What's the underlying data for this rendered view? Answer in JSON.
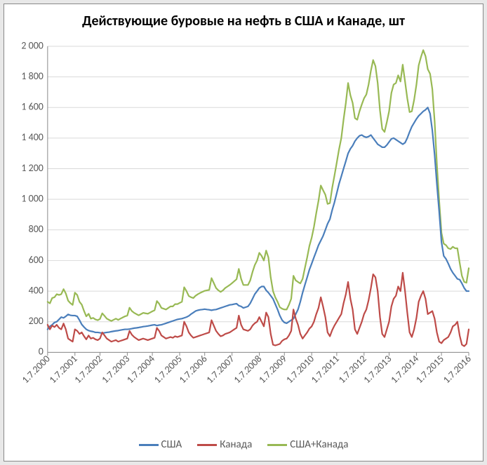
{
  "chart": {
    "type": "line",
    "title": "Действующие буровые на нефть в США и Канаде, шт",
    "title_fontsize": 20,
    "title_fontweight": "bold",
    "background_color": "#ffffff",
    "frame_color": "#888888",
    "grid_color": "#d9d9d9",
    "axis_color": "#8a8a8a",
    "tick_label_color": "#595959",
    "tick_label_fontsize": 14,
    "y": {
      "min": 0,
      "max": 2000,
      "step": 200,
      "labels": [
        "0",
        "200",
        "400",
        "600",
        "800",
        "1 000",
        "1 200",
        "1 400",
        "1 600",
        "1 800",
        "2 000"
      ]
    },
    "x": {
      "categories": [
        "1.7.2000",
        "1.7.2001",
        "1.7.2002",
        "1.7.2003",
        "1.7.2004",
        "1.7.2005",
        "1.7.2006",
        "1.7.2007",
        "1.7.2008",
        "1.7.2009",
        "1.7.2010",
        "1.7.2011",
        "1.7.2012",
        "1.7.2013",
        "1.7.2014",
        "1.7.2015",
        "1.7.2016"
      ],
      "label_rotation": -45
    },
    "series": [
      {
        "id": "usa",
        "name": "США",
        "color": "#4a7ebb",
        "line_width": 2.2,
        "data": [
          150,
          170,
          180,
          195,
          200,
          215,
          230,
          225,
          235,
          248,
          242,
          240,
          240,
          235,
          210,
          182,
          165,
          150,
          142,
          138,
          135,
          130,
          130,
          128,
          125,
          128,
          130,
          132,
          135,
          138,
          140,
          142,
          145,
          148,
          150,
          150,
          152,
          155,
          158,
          160,
          162,
          165,
          168,
          170,
          172,
          175,
          178,
          180,
          175,
          178,
          180,
          185,
          190,
          195,
          200,
          205,
          210,
          215,
          218,
          220,
          225,
          230,
          238,
          250,
          260,
          270,
          275,
          278,
          280,
          282,
          280,
          278,
          275,
          278,
          280,
          285,
          290,
          295,
          300,
          305,
          310,
          312,
          315,
          318,
          305,
          300,
          290,
          295,
          300,
          320,
          350,
          380,
          400,
          420,
          430,
          430,
          405,
          390,
          370,
          350,
          315,
          280,
          240,
          210,
          195,
          190,
          200,
          210,
          220,
          250,
          280,
          330,
          390,
          440,
          490,
          540,
          580,
          620,
          660,
          700,
          730,
          760,
          800,
          840,
          870,
          930,
          980,
          1040,
          1100,
          1150,
          1200,
          1250,
          1300,
          1330,
          1350,
          1380,
          1400,
          1415,
          1420,
          1410,
          1405,
          1410,
          1420,
          1400,
          1380,
          1360,
          1350,
          1340,
          1340,
          1355,
          1375,
          1395,
          1400,
          1390,
          1380,
          1370,
          1360,
          1370,
          1400,
          1440,
          1475,
          1500,
          1525,
          1545,
          1560,
          1575,
          1585,
          1600,
          1560,
          1450,
          1290,
          1100,
          920,
          720,
          630,
          610,
          580,
          545,
          520,
          500,
          480,
          475,
          450,
          420,
          400,
          400
        ]
      },
      {
        "id": "canada",
        "name": "Канада",
        "color": "#be4b48",
        "line_width": 2.2,
        "data": [
          180,
          150,
          175,
          165,
          180,
          160,
          150,
          188,
          150,
          90,
          80,
          70,
          150,
          140,
          120,
          130,
          105,
          85,
          110,
          90,
          95,
          85,
          80,
          90,
          130,
          110,
          90,
          80,
          70,
          75,
          80,
          70,
          75,
          80,
          85,
          90,
          140,
          115,
          100,
          90,
          80,
          85,
          90,
          85,
          80,
          85,
          90,
          95,
          160,
          140,
          110,
          100,
          90,
          95,
          100,
          95,
          105,
          100,
          105,
          110,
          200,
          170,
          130,
          110,
          95,
          100,
          105,
          110,
          115,
          120,
          125,
          130,
          210,
          175,
          140,
          120,
          105,
          110,
          120,
          125,
          130,
          140,
          150,
          160,
          240,
          180,
          150,
          145,
          140,
          150,
          175,
          190,
          200,
          230,
          200,
          170,
          260,
          230,
          120,
          50,
          45,
          50,
          55,
          75,
          85,
          90,
          110,
          140,
          280,
          220,
          180,
          120,
          90,
          110,
          130,
          155,
          170,
          200,
          250,
          290,
          360,
          300,
          230,
          130,
          105,
          145,
          175,
          200,
          225,
          250,
          320,
          380,
          460,
          350,
          280,
          150,
          120,
          160,
          200,
          250,
          280,
          340,
          420,
          510,
          490,
          400,
          230,
          120,
          100,
          150,
          200,
          300,
          350,
          370,
          430,
          400,
          520,
          400,
          260,
          130,
          100,
          150,
          225,
          330,
          370,
          400,
          350,
          250,
          260,
          270,
          220,
          130,
          70,
          60,
          80,
          90,
          100,
          130,
          170,
          180,
          200,
          110,
          50,
          40,
          55,
          150
        ]
      },
      {
        "id": "total",
        "name": "США+Канада",
        "color": "#98b954",
        "line_width": 2.2,
        "data": [
          330,
          320,
          355,
          360,
          380,
          375,
          380,
          413,
          385,
          338,
          322,
          310,
          390,
          375,
          330,
          312,
          270,
          235,
          252,
          220,
          225,
          215,
          210,
          218,
          255,
          238,
          220,
          212,
          205,
          213,
          220,
          212,
          220,
          228,
          235,
          240,
          292,
          270,
          258,
          250,
          242,
          250,
          258,
          255,
          252,
          260,
          268,
          275,
          335,
          318,
          290,
          285,
          280,
          290,
          300,
          300,
          315,
          315,
          323,
          330,
          425,
          400,
          368,
          360,
          355,
          370,
          380,
          388,
          395,
          402,
          405,
          408,
          485,
          453,
          420,
          405,
          395,
          405,
          420,
          430,
          440,
          452,
          465,
          478,
          545,
          480,
          440,
          440,
          440,
          470,
          525,
          570,
          600,
          650,
          630,
          600,
          665,
          620,
          490,
          400,
          360,
          330,
          295,
          285,
          280,
          280,
          310,
          350,
          500,
          470,
          460,
          450,
          480,
          550,
          620,
          695,
          750,
          820,
          910,
          990,
          1090,
          1060,
          1030,
          970,
          975,
          1075,
          1155,
          1240,
          1325,
          1400,
          1520,
          1630,
          1760,
          1680,
          1630,
          1530,
          1520,
          1575,
          1620,
          1660,
          1685,
          1750,
          1840,
          1910,
          1870,
          1760,
          1580,
          1460,
          1440,
          1505,
          1575,
          1695,
          1750,
          1760,
          1810,
          1770,
          1880,
          1770,
          1660,
          1570,
          1575,
          1650,
          1750,
          1875,
          1930,
          1975,
          1935,
          1850,
          1820,
          1720,
          1510,
          1230,
          990,
          780,
          710,
          700,
          680,
          675,
          690,
          680,
          680,
          585,
          500,
          460,
          455,
          550
        ]
      }
    ],
    "legend": {
      "position": "bottom",
      "fontsize": 15,
      "items": [
        "США",
        "Канада",
        "США+Канада"
      ]
    }
  }
}
